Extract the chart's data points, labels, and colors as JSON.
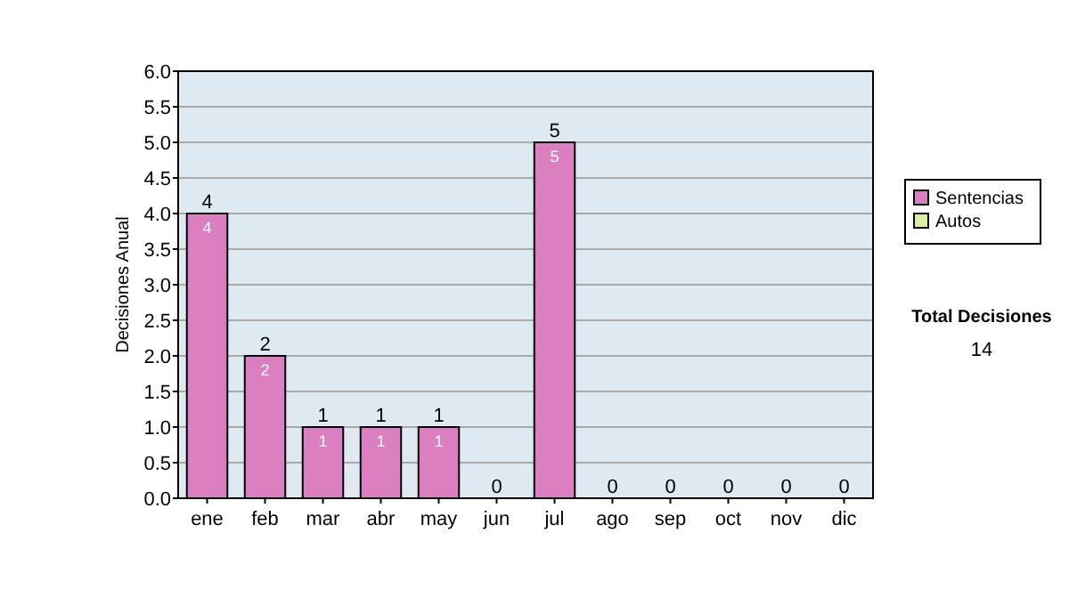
{
  "chart_data": {
    "type": "bar",
    "stacked": true,
    "ylabel": "Decisiones Anual",
    "categories": [
      "ene",
      "feb",
      "mar",
      "abr",
      "may",
      "jun",
      "jul",
      "ago",
      "sep",
      "oct",
      "nov",
      "dic"
    ],
    "series": [
      {
        "name": "Sentencias",
        "color": "#dc7fc0",
        "values": [
          4,
          2,
          1,
          1,
          1,
          0,
          5,
          0,
          0,
          0,
          0,
          0
        ],
        "value_labels": [
          "4",
          "2",
          "1",
          "1",
          "1",
          null,
          "5",
          null,
          null,
          null,
          null,
          null
        ]
      },
      {
        "name": "Autos",
        "color": "#d9eea0",
        "values": [
          0,
          0,
          0,
          0,
          0,
          0,
          0,
          0,
          0,
          0,
          0,
          0
        ]
      }
    ],
    "totals": [
      "4",
      "2",
      "1",
      "1",
      "1",
      "0",
      "5",
      "0",
      "0",
      "0",
      "0",
      "0"
    ],
    "ylim": [
      0,
      6
    ],
    "yticks": [
      {
        "value": 0,
        "label": "0.0"
      },
      {
        "value": 0.5,
        "label": "0.5"
      },
      {
        "value": 1,
        "label": "1.0"
      },
      {
        "value": 1.5,
        "label": "1.5"
      },
      {
        "value": 2,
        "label": "2.0"
      },
      {
        "value": 2.5,
        "label": "2.5"
      },
      {
        "value": 3,
        "label": "3.0"
      },
      {
        "value": 3.5,
        "label": "3.5"
      },
      {
        "value": 4,
        "label": "4.0"
      },
      {
        "value": 4.5,
        "label": "4.5"
      },
      {
        "value": 5,
        "label": "5.0"
      },
      {
        "value": 5.5,
        "label": "5.5"
      },
      {
        "value": 6,
        "label": "6.0"
      }
    ],
    "grid": "y",
    "legend": "right",
    "annotations": [
      "Total Decisiones",
      "14"
    ]
  }
}
